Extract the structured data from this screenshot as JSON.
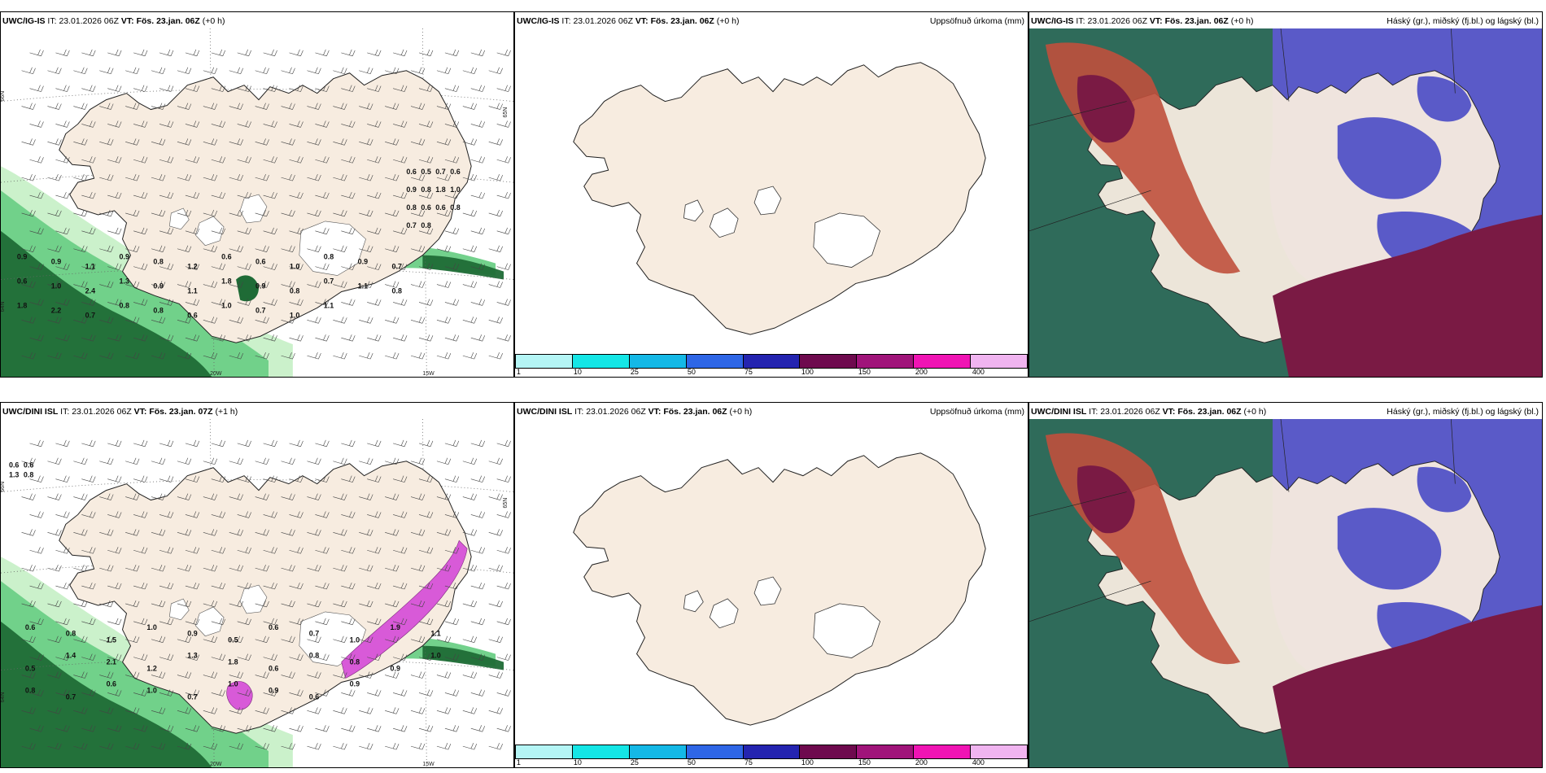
{
  "panels": [
    {
      "id": "tl",
      "model": "UWC/IG-IS",
      "it_label": "IT:",
      "it_value": "23.01.2026 06Z",
      "vt_label": "VT:",
      "vt_value": "Fös. 23.jan. 06Z",
      "lead": "(+0 h)",
      "right_title": "",
      "map_type": "wind-precip",
      "axis_labels": [
        "66N",
        "65N",
        "64N",
        "20W",
        "15W"
      ],
      "value_labels": [
        "0.6",
        "0.5",
        "0.7",
        "0.6",
        "0.9",
        "0.8",
        "1.8",
        "1.0",
        "0.8",
        "0.6",
        "0.6",
        "0.8",
        "0.7",
        "0.8",
        "0.9",
        "0.9",
        "1.1",
        "0.9",
        "0.8",
        "1.2",
        "0.6",
        "0.6",
        "1.0",
        "0.8",
        "0.9",
        "0.7",
        "0.6",
        "1.0",
        "2.4",
        "1.3",
        "0.9",
        "1.1",
        "1.8",
        "0.9",
        "0.8",
        "0.7",
        "1.1",
        "0.8",
        "1.8",
        "2.2",
        "0.7",
        "0.8",
        "0.8",
        "0.6",
        "1.0",
        "0.7",
        "1.0",
        "1.1"
      ]
    },
    {
      "id": "tm",
      "model": "UWC/IG-IS",
      "it_label": "IT:",
      "it_value": "23.01.2026 06Z",
      "vt_label": "VT:",
      "vt_value": "Fös. 23.jan. 06Z",
      "lead": "(+0 h)",
      "right_title": "Uppsöfnuð úrkoma (mm)",
      "map_type": "accum"
    },
    {
      "id": "tr",
      "model": "UWC/IG-IS",
      "it_label": "IT:",
      "it_value": "23.01.2026 06Z",
      "vt_label": "VT:",
      "vt_value": "Fös. 23.jan. 06Z",
      "lead": "(+0 h)",
      "right_title": "Háský (gr.), miðský (fj.bl.) og lágský (bl.)",
      "map_type": "cloud"
    },
    {
      "id": "bl",
      "model": "UWC/DINI ISL",
      "it_label": "IT:",
      "it_value": "23.01.2026 06Z",
      "vt_label": "VT:",
      "vt_value": "Fös. 23.jan. 07Z",
      "lead": "(+1 h)",
      "right_title": "",
      "map_type": "wind-precip",
      "axis_labels": [
        "66N",
        "65N",
        "64N",
        "20W",
        "15W"
      ],
      "value_labels": [
        "0.6",
        "0.6",
        "1.3",
        "0.8",
        "0.6",
        "0.8",
        "1.5",
        "1.0",
        "0.9",
        "0.5",
        "0.6",
        "0.7",
        "1.0",
        "1.9",
        "1.1",
        "0.5",
        "1.4",
        "2.1",
        "1.2",
        "1.3",
        "1.8",
        "0.6",
        "0.8",
        "0.8",
        "0.9",
        "1.0",
        "0.8",
        "0.7",
        "0.6",
        "1.0",
        "0.7",
        "1.0",
        "0.9",
        "0.6",
        "0.9"
      ]
    },
    {
      "id": "bm",
      "model": "UWC/DINI ISL",
      "it_label": "IT:",
      "it_value": "23.01.2026 06Z",
      "vt_label": "VT:",
      "vt_value": "Fös. 23.jan. 06Z",
      "lead": "(+0 h)",
      "right_title": "Uppsöfnuð úrkoma (mm)",
      "map_type": "accum"
    },
    {
      "id": "br",
      "model": "UWC/DINI ISL",
      "it_label": "IT:",
      "it_value": "23.01.2026 06Z",
      "vt_label": "VT:",
      "vt_value": "Fös. 23.jan. 06Z",
      "lead": "(+0 h)",
      "right_title": "Háský (gr.), miðský (fj.bl.) og lágský (bl.)",
      "map_type": "cloud"
    }
  ],
  "legend": {
    "colors": [
      "#b4f5f5",
      "#14e6e6",
      "#14b8e6",
      "#2e66e6",
      "#2424b0",
      "#6e0a4e",
      "#a0147a",
      "#f014b4",
      "#f0b4f0"
    ],
    "ticks": [
      "1",
      "10",
      "25",
      "50",
      "75",
      "100",
      "150",
      "200",
      "400"
    ]
  },
  "colors": {
    "land": "#f7ece0",
    "precip_light": "#c8f0c8",
    "precip_mid": "#6ccf86",
    "precip_dark": "#1f6b36",
    "snow_pink": "#d85ad8",
    "cloud_high": "#2f6b5a",
    "cloud_mid": "#5a5ac8",
    "cloud_low": "#7a1a44",
    "cloud_red": "#c0503c"
  }
}
